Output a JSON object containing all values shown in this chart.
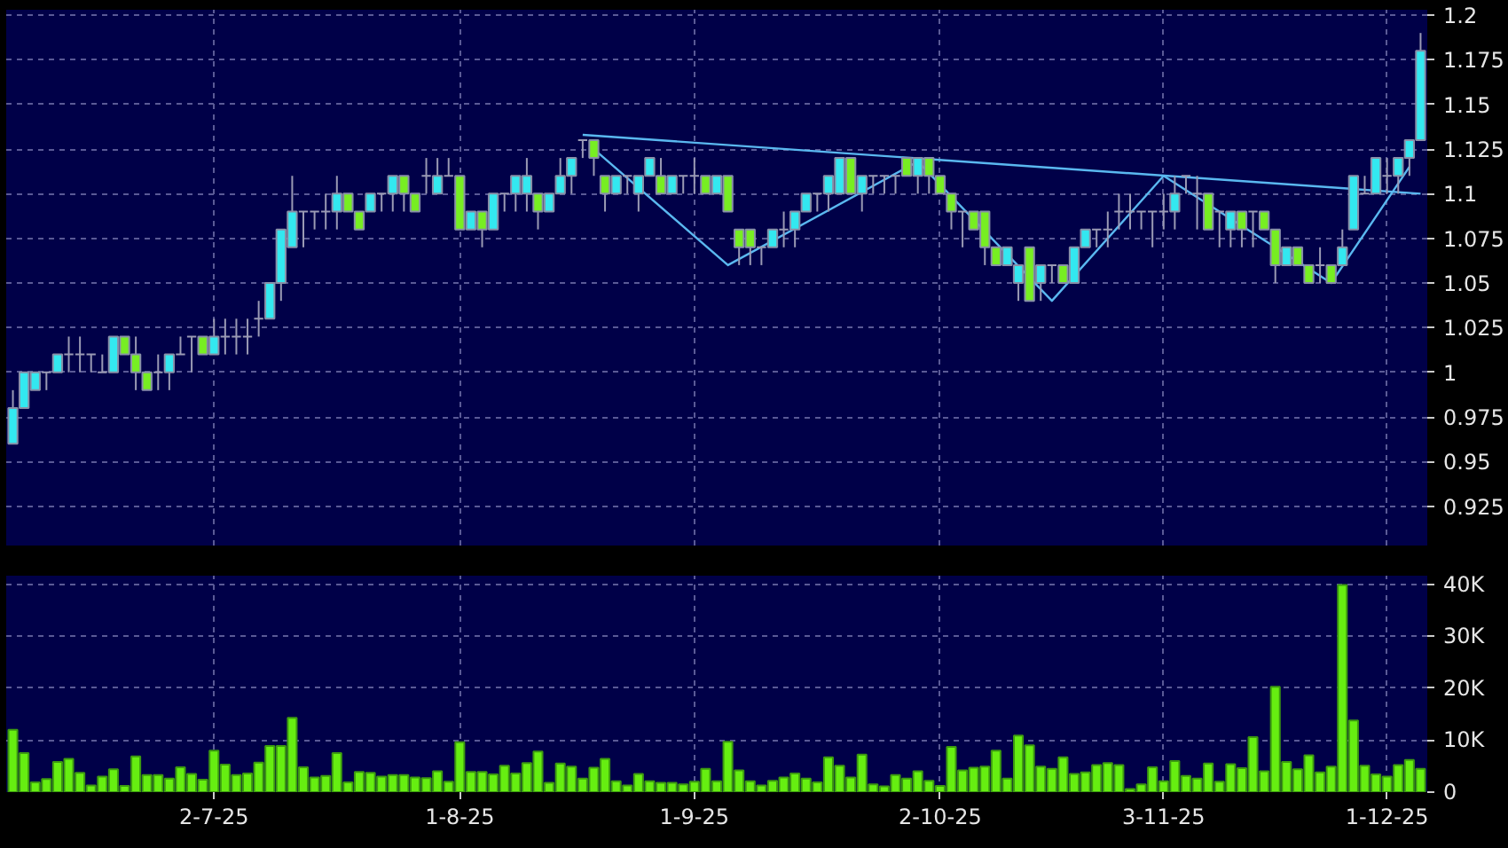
{
  "chart_data": [
    {
      "type": "candlestick",
      "categories": [
        null,
        null,
        null,
        null,
        null,
        null,
        null,
        null,
        null,
        null,
        null,
        null,
        null,
        null,
        null,
        null,
        null,
        null,
        null,
        null,
        null,
        null,
        null,
        null,
        null,
        null,
        null,
        null,
        null,
        null,
        null,
        null,
        null,
        null,
        null,
        null,
        null,
        null,
        null,
        null,
        null,
        null,
        null,
        null,
        null,
        null,
        null,
        null,
        null,
        null,
        null,
        null,
        null,
        null,
        null,
        null,
        null,
        null,
        null,
        null,
        null,
        null,
        null,
        null,
        null,
        null,
        null,
        null,
        null,
        null,
        null,
        null,
        null,
        null,
        null,
        null,
        null,
        null,
        null,
        null,
        null,
        null,
        null,
        null,
        null,
        null,
        null,
        null,
        null,
        null,
        null,
        null,
        null,
        null,
        null,
        null,
        null,
        null,
        null,
        null,
        null,
        null,
        null,
        null,
        null,
        null,
        null,
        null,
        null,
        null,
        null,
        null,
        null,
        null,
        null,
        null,
        null,
        null,
        null,
        null,
        null,
        null,
        null,
        null,
        null,
        null,
        null
      ],
      "ohlc": [
        [
          0.96,
          0.99,
          0.96,
          0.98
        ],
        [
          0.98,
          1.0,
          0.98,
          1.0
        ],
        [
          0.99,
          1.0,
          0.99,
          1.0
        ],
        [
          1.0,
          1.0,
          0.99,
          1.0
        ],
        [
          1.0,
          1.01,
          1.0,
          1.01
        ],
        [
          1.01,
          1.02,
          1.0,
          1.01
        ],
        [
          1.01,
          1.02,
          1.0,
          1.01
        ],
        [
          1.01,
          1.01,
          1.0,
          1.01
        ],
        [
          1.0,
          1.01,
          1.0,
          1.0
        ],
        [
          1.0,
          1.02,
          1.0,
          1.02
        ],
        [
          1.02,
          1.02,
          1.01,
          1.01
        ],
        [
          1.01,
          1.02,
          0.99,
          1.0
        ],
        [
          1.0,
          1.0,
          0.99,
          0.99
        ],
        [
          1.0,
          1.01,
          0.99,
          1.0
        ],
        [
          1.0,
          1.01,
          0.99,
          1.01
        ],
        [
          1.01,
          1.02,
          1.01,
          1.01
        ],
        [
          1.02,
          1.02,
          1.0,
          1.02
        ],
        [
          1.02,
          1.02,
          1.01,
          1.01
        ],
        [
          1.01,
          1.03,
          1.01,
          1.02
        ],
        [
          1.02,
          1.03,
          1.01,
          1.02
        ],
        [
          1.02,
          1.03,
          1.01,
          1.02
        ],
        [
          1.02,
          1.03,
          1.01,
          1.02
        ],
        [
          1.03,
          1.04,
          1.02,
          1.03
        ],
        [
          1.03,
          1.05,
          1.03,
          1.05
        ],
        [
          1.05,
          1.08,
          1.04,
          1.08
        ],
        [
          1.07,
          1.11,
          1.07,
          1.09
        ],
        [
          1.09,
          1.09,
          1.07,
          1.09
        ],
        [
          1.09,
          1.09,
          1.08,
          1.09
        ],
        [
          1.09,
          1.1,
          1.08,
          1.09
        ],
        [
          1.09,
          1.11,
          1.08,
          1.1
        ],
        [
          1.1,
          1.1,
          1.09,
          1.09
        ],
        [
          1.09,
          1.09,
          1.08,
          1.08
        ],
        [
          1.09,
          1.1,
          1.09,
          1.1
        ],
        [
          1.1,
          1.1,
          1.09,
          1.1
        ],
        [
          1.1,
          1.11,
          1.09,
          1.11
        ],
        [
          1.11,
          1.11,
          1.09,
          1.1
        ],
        [
          1.1,
          1.1,
          1.09,
          1.09
        ],
        [
          1.11,
          1.12,
          1.1,
          1.11
        ],
        [
          1.1,
          1.12,
          1.1,
          1.11
        ],
        [
          1.11,
          1.12,
          1.11,
          1.11
        ],
        [
          1.11,
          1.11,
          1.08,
          1.08
        ],
        [
          1.08,
          1.09,
          1.08,
          1.09
        ],
        [
          1.09,
          1.09,
          1.07,
          1.08
        ],
        [
          1.08,
          1.1,
          1.08,
          1.1
        ],
        [
          1.1,
          1.1,
          1.09,
          1.1
        ],
        [
          1.1,
          1.11,
          1.09,
          1.11
        ],
        [
          1.1,
          1.12,
          1.09,
          1.11
        ],
        [
          1.1,
          1.1,
          1.08,
          1.09
        ],
        [
          1.09,
          1.1,
          1.09,
          1.1
        ],
        [
          1.1,
          1.12,
          1.1,
          1.11
        ],
        [
          1.11,
          1.12,
          1.1,
          1.12
        ],
        [
          1.13,
          1.13,
          1.12,
          1.13
        ],
        [
          1.13,
          1.13,
          1.11,
          1.12
        ],
        [
          1.11,
          1.11,
          1.09,
          1.1
        ],
        [
          1.1,
          1.11,
          1.1,
          1.11
        ],
        [
          1.11,
          1.11,
          1.1,
          1.11
        ],
        [
          1.1,
          1.11,
          1.09,
          1.11
        ],
        [
          1.11,
          1.12,
          1.11,
          1.12
        ],
        [
          1.11,
          1.12,
          1.1,
          1.1
        ],
        [
          1.1,
          1.11,
          1.1,
          1.11
        ],
        [
          1.11,
          1.11,
          1.1,
          1.11
        ],
        [
          1.11,
          1.12,
          1.1,
          1.11
        ],
        [
          1.11,
          1.11,
          1.1,
          1.1
        ],
        [
          1.1,
          1.11,
          1.1,
          1.11
        ],
        [
          1.11,
          1.11,
          1.09,
          1.09
        ],
        [
          1.08,
          1.08,
          1.06,
          1.07
        ],
        [
          1.08,
          1.08,
          1.06,
          1.07
        ],
        [
          1.07,
          1.07,
          1.06,
          1.07
        ],
        [
          1.07,
          1.08,
          1.07,
          1.08
        ],
        [
          1.08,
          1.09,
          1.07,
          1.08
        ],
        [
          1.08,
          1.09,
          1.07,
          1.09
        ],
        [
          1.09,
          1.1,
          1.09,
          1.1
        ],
        [
          1.1,
          1.1,
          1.09,
          1.1
        ],
        [
          1.1,
          1.11,
          1.09,
          1.11
        ],
        [
          1.1,
          1.12,
          1.1,
          1.12
        ],
        [
          1.12,
          1.12,
          1.1,
          1.1
        ],
        [
          1.1,
          1.11,
          1.09,
          1.11
        ],
        [
          1.11,
          1.11,
          1.1,
          1.11
        ],
        [
          1.11,
          1.11,
          1.1,
          1.11
        ],
        [
          1.11,
          1.11,
          1.1,
          1.11
        ],
        [
          1.12,
          1.12,
          1.11,
          1.11
        ],
        [
          1.11,
          1.12,
          1.1,
          1.12
        ],
        [
          1.12,
          1.12,
          1.1,
          1.11
        ],
        [
          1.11,
          1.11,
          1.1,
          1.1
        ],
        [
          1.1,
          1.1,
          1.08,
          1.09
        ],
        [
          1.09,
          1.09,
          1.07,
          1.09
        ],
        [
          1.09,
          1.09,
          1.08,
          1.08
        ],
        [
          1.09,
          1.09,
          1.06,
          1.07
        ],
        [
          1.07,
          1.07,
          1.06,
          1.06
        ],
        [
          1.06,
          1.07,
          1.06,
          1.07
        ],
        [
          1.05,
          1.06,
          1.04,
          1.06
        ],
        [
          1.07,
          1.07,
          1.04,
          1.04
        ],
        [
          1.05,
          1.06,
          1.04,
          1.06
        ],
        [
          1.06,
          1.06,
          1.05,
          1.06
        ],
        [
          1.06,
          1.06,
          1.05,
          1.05
        ],
        [
          1.05,
          1.07,
          1.05,
          1.07
        ],
        [
          1.07,
          1.08,
          1.07,
          1.08
        ],
        [
          1.08,
          1.08,
          1.07,
          1.08
        ],
        [
          1.08,
          1.09,
          1.07,
          1.08
        ],
        [
          1.09,
          1.1,
          1.08,
          1.09
        ],
        [
          1.09,
          1.1,
          1.08,
          1.09
        ],
        [
          1.09,
          1.09,
          1.08,
          1.09
        ],
        [
          1.09,
          1.09,
          1.07,
          1.09
        ],
        [
          1.09,
          1.1,
          1.08,
          1.09
        ],
        [
          1.09,
          1.11,
          1.08,
          1.1
        ],
        [
          1.11,
          1.11,
          1.1,
          1.11
        ],
        [
          1.1,
          1.11,
          1.08,
          1.1
        ],
        [
          1.1,
          1.1,
          1.08,
          1.08
        ],
        [
          1.09,
          1.09,
          1.07,
          1.09
        ],
        [
          1.08,
          1.09,
          1.07,
          1.09
        ],
        [
          1.09,
          1.09,
          1.07,
          1.08
        ],
        [
          1.09,
          1.09,
          1.07,
          1.09
        ],
        [
          1.09,
          1.09,
          1.08,
          1.08
        ],
        [
          1.08,
          1.08,
          1.05,
          1.06
        ],
        [
          1.06,
          1.07,
          1.06,
          1.07
        ],
        [
          1.07,
          1.07,
          1.06,
          1.06
        ],
        [
          1.06,
          1.06,
          1.05,
          1.05
        ],
        [
          1.06,
          1.07,
          1.05,
          1.06
        ],
        [
          1.06,
          1.06,
          1.05,
          1.05
        ],
        [
          1.06,
          1.08,
          1.06,
          1.07
        ],
        [
          1.08,
          1.11,
          1.08,
          1.11
        ],
        [
          1.1,
          1.11,
          1.1,
          1.1
        ],
        [
          1.1,
          1.12,
          1.1,
          1.12
        ],
        [
          1.11,
          1.12,
          1.1,
          1.11
        ],
        [
          1.11,
          1.12,
          1.1,
          1.12
        ],
        [
          1.12,
          1.13,
          1.11,
          1.13
        ],
        [
          1.13,
          1.19,
          1.13,
          1.18
        ]
      ],
      "colors": [
        "#33e8f0",
        "#33e8f0",
        "#33e8f0",
        "#9a9ab4",
        "#33e8f0",
        "#9a9ab4",
        "#9a9ab4",
        "#9a9ab4",
        "#9a9ab4",
        "#33e8f0",
        "#77ee22",
        "#77ee22",
        "#77ee22",
        "#9a9ab4",
        "#33e8f0",
        "#9a9ab4",
        "#9a9ab4",
        "#77ee22",
        "#33e8f0",
        "#9a9ab4",
        "#9a9ab4",
        "#9a9ab4",
        "#9a9ab4",
        "#33e8f0",
        "#33e8f0",
        "#33e8f0",
        "#9a9ab4",
        "#9a9ab4",
        "#9a9ab4",
        "#33e8f0",
        "#77ee22",
        "#77ee22",
        "#33e8f0",
        "#9a9ab4",
        "#33e8f0",
        "#77ee22",
        "#77ee22",
        "#9a9ab4",
        "#33e8f0",
        "#9a9ab4",
        "#77ee22",
        "#33e8f0",
        "#77ee22",
        "#33e8f0",
        "#9a9ab4",
        "#33e8f0",
        "#33e8f0",
        "#77ee22",
        "#33e8f0",
        "#33e8f0",
        "#33e8f0",
        "#9a9ab4",
        "#77ee22",
        "#77ee22",
        "#33e8f0",
        "#9a9ab4",
        "#33e8f0",
        "#33e8f0",
        "#77ee22",
        "#33e8f0",
        "#9a9ab4",
        "#9a9ab4",
        "#77ee22",
        "#33e8f0",
        "#77ee22",
        "#77ee22",
        "#77ee22",
        "#9a9ab4",
        "#33e8f0",
        "#9a9ab4",
        "#33e8f0",
        "#33e8f0",
        "#9a9ab4",
        "#33e8f0",
        "#33e8f0",
        "#77ee22",
        "#33e8f0",
        "#9a9ab4",
        "#9a9ab4",
        "#9a9ab4",
        "#77ee22",
        "#33e8f0",
        "#77ee22",
        "#77ee22",
        "#77ee22",
        "#9a9ab4",
        "#77ee22",
        "#77ee22",
        "#77ee22",
        "#33e8f0",
        "#33e8f0",
        "#77ee22",
        "#33e8f0",
        "#9a9ab4",
        "#77ee22",
        "#33e8f0",
        "#33e8f0",
        "#9a9ab4",
        "#9a9ab4",
        "#9a9ab4",
        "#9a9ab4",
        "#9a9ab4",
        "#9a9ab4",
        "#9a9ab4",
        "#33e8f0",
        "#9a9ab4",
        "#9a9ab4",
        "#77ee22",
        "#9a9ab4",
        "#33e8f0",
        "#77ee22",
        "#9a9ab4",
        "#77ee22",
        "#77ee22",
        "#33e8f0",
        "#77ee22",
        "#77ee22",
        "#9a9ab4",
        "#77ee22",
        "#33e8f0",
        "#33e8f0",
        "#9a9ab4",
        "#33e8f0",
        "#9a9ab4",
        "#33e8f0",
        "#33e8f0",
        "#33e8f0"
      ],
      "series": [
        {
          "type": "line",
          "color": "#5ab8f0",
          "values": [
            null,
            null,
            null,
            null,
            null,
            null,
            null,
            null,
            null,
            null,
            null,
            null,
            null,
            null,
            null,
            null,
            null,
            null,
            null,
            null,
            null,
            null,
            null,
            null,
            null,
            null,
            null,
            null,
            null,
            null,
            null,
            null,
            null,
            null,
            null,
            null,
            null,
            null,
            null,
            null,
            null,
            null,
            null,
            null,
            null,
            null,
            null,
            null,
            null,
            null,
            null,
            1.133,
            null,
            null,
            null,
            null,
            null,
            null,
            null,
            null,
            null,
            null,
            null,
            null,
            null,
            null,
            null,
            null,
            null,
            null,
            null,
            null,
            null,
            null,
            null,
            null,
            null,
            null,
            null,
            null,
            null,
            null,
            null,
            null,
            null,
            null,
            null,
            null,
            null,
            null,
            null,
            null,
            null,
            null,
            null,
            null,
            null,
            null,
            null,
            null,
            null,
            null,
            null,
            null,
            null,
            null,
            null,
            null,
            null,
            null,
            null,
            null,
            null,
            null,
            null,
            null,
            null,
            null,
            null,
            null,
            null,
            null,
            null,
            null,
            null,
            null,
            1.1
          ]
        },
        {
          "type": "line",
          "color": "#5ab8f0",
          "values": [
            null,
            null,
            null,
            null,
            null,
            null,
            null,
            null,
            null,
            null,
            null,
            null,
            null,
            null,
            null,
            null,
            null,
            null,
            null,
            null,
            null,
            null,
            null,
            null,
            null,
            null,
            null,
            null,
            null,
            null,
            null,
            null,
            null,
            null,
            null,
            null,
            null,
            null,
            null,
            null,
            null,
            null,
            null,
            null,
            null,
            null,
            null,
            null,
            null,
            null,
            null,
            null,
            1.125,
            null,
            null,
            null,
            null,
            null,
            null,
            null,
            null,
            null,
            null,
            null,
            1.06,
            null,
            null,
            null,
            null,
            null,
            null,
            null,
            null,
            null,
            null,
            null,
            null,
            null,
            null,
            null,
            null,
            1.118,
            null,
            null,
            null,
            null,
            null,
            null,
            null,
            null,
            null,
            null,
            null,
            1.04,
            null,
            null,
            null,
            null,
            null,
            null,
            null,
            null,
            null,
            1.11,
            null,
            null,
            null,
            null,
            null,
            null,
            null,
            null,
            null,
            null,
            null,
            null,
            null,
            null,
            1.05,
            null,
            null,
            null,
            null,
            null,
            null,
            1.115,
            null
          ]
        }
      ],
      "ylim": [
        0.903,
        1.203
      ],
      "yticks": [
        0.925,
        0.95,
        0.975,
        1,
        1.025,
        1.05,
        1.075,
        1.1,
        1.125,
        1.15,
        1.175,
        1.2
      ],
      "grid": true,
      "tick_labels": "y"
    },
    {
      "type": "bar",
      "categories": [
        null,
        null,
        null,
        null,
        null,
        null,
        null,
        null,
        null,
        null,
        null,
        null,
        null,
        null,
        null,
        null,
        null,
        null,
        "2-7-25",
        null,
        null,
        null,
        null,
        null,
        null,
        null,
        null,
        null,
        null,
        null,
        null,
        null,
        null,
        null,
        null,
        null,
        null,
        null,
        null,
        null,
        "1-8-25",
        null,
        null,
        null,
        null,
        null,
        null,
        null,
        null,
        null,
        null,
        null,
        null,
        null,
        null,
        null,
        null,
        null,
        null,
        null,
        null,
        "1-9-25",
        null,
        null,
        null,
        null,
        null,
        null,
        null,
        null,
        null,
        null,
        null,
        null,
        null,
        null,
        null,
        null,
        null,
        null,
        null,
        null,
        null,
        "2-10-25",
        null,
        null,
        null,
        null,
        null,
        null,
        null,
        null,
        null,
        null,
        null,
        null,
        null,
        null,
        null,
        null,
        null,
        null,
        null,
        "3-11-25",
        null,
        null,
        null,
        null,
        null,
        null,
        null,
        null,
        null,
        null,
        null,
        null,
        null,
        null,
        null,
        null,
        null,
        null,
        null,
        "1-12-25",
        null,
        null,
        null
      ],
      "values": [
        12000,
        7500,
        1900,
        2500,
        5800,
        6400,
        3700,
        1300,
        3000,
        4400,
        1200,
        6900,
        3300,
        3300,
        2600,
        4800,
        3500,
        2400,
        8000,
        5300,
        3300,
        3600,
        5700,
        8900,
        8900,
        14300,
        4800,
        2800,
        3100,
        7500,
        1900,
        3900,
        3700,
        3000,
        3300,
        3300,
        2800,
        2700,
        4000,
        2000,
        9600,
        3900,
        3900,
        3400,
        5100,
        3600,
        5600,
        7800,
        1800,
        5500,
        4900,
        2600,
        4700,
        6400,
        2100,
        1300,
        3500,
        2100,
        1800,
        1800,
        1500,
        2000,
        4500,
        2100,
        9700,
        4200,
        2100,
        1300,
        2200,
        2800,
        3600,
        2600,
        1900,
        6700,
        5100,
        2800,
        7200,
        1500,
        1100,
        3300,
        2600,
        4000,
        2200,
        1200,
        8700,
        4200,
        4700,
        4900,
        8000,
        2600,
        10900,
        9000,
        4900,
        4500,
        6700,
        3500,
        3800,
        5200,
        5600,
        5200,
        600,
        1500,
        4800,
        2100,
        6000,
        3100,
        2600,
        5500,
        2000,
        5400,
        4600,
        10600,
        4000,
        20300,
        5800,
        4400,
        7100,
        3800,
        4900,
        39900,
        13800,
        5100,
        3400,
        3000,
        5200,
        6200,
        4500
      ],
      "color": "#66ee11",
      "ylim": [
        0,
        41700
      ],
      "yticks": [
        0,
        {
          "value": 10000,
          "label": "10K"
        },
        {
          "value": 20000,
          "label": "20K"
        },
        {
          "value": 30000,
          "label": "30K"
        },
        {
          "value": 40000,
          "label": "40K"
        }
      ],
      "grid": true
    }
  ]
}
